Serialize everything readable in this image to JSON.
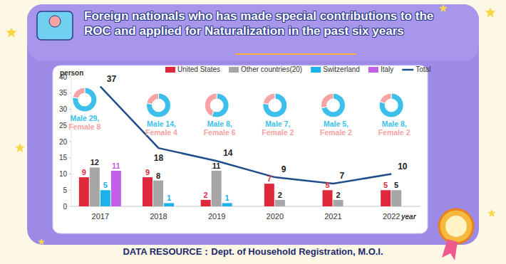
{
  "chart_data": [
    {
      "type": "bar",
      "title": "Foreign nationals who has made special contributions to the ROC and applied for Naturalization  in the past six years",
      "x_label": "year",
      "y_label": "person",
      "annotations": [
        "DATA RESOURCE：Dept. of Household Registration, M.O.I."
      ],
      "categories": [
        "2017",
        "2018",
        "2019",
        "2020",
        "2021",
        "2022"
      ],
      "series": [
        {
          "name": "United States",
          "type": "bar",
          "color": "#e0283c",
          "values": [
            9,
            9,
            2,
            7,
            5,
            5
          ]
        },
        {
          "name": "Other countries(20)",
          "type": "bar",
          "color": "#a6a6a6",
          "values": [
            12,
            8,
            11,
            2,
            2,
            5
          ]
        },
        {
          "name": "Switzerland",
          "type": "bar",
          "color": "#1ab2e8",
          "values": [
            5,
            1,
            1,
            null,
            null,
            null
          ]
        },
        {
          "name": "Italy",
          "type": "bar",
          "color": "#c060e8",
          "values": [
            11,
            null,
            null,
            null,
            null,
            null
          ]
        },
        {
          "name": "Total",
          "type": "line",
          "color": "#1f4e8c",
          "values": [
            37,
            18,
            14,
            9,
            7,
            10
          ]
        }
      ],
      "ylim": [
        0,
        40
      ],
      "yticks": [
        0,
        5,
        10,
        15,
        20,
        25,
        30,
        35,
        40
      ],
      "grid": false,
      "legend": "top",
      "data_labels": true
    },
    {
      "type": "pie",
      "categories": [
        "Male",
        "Female"
      ],
      "values": [
        29,
        8
      ],
      "colors": [
        "#3cbfea",
        "#f5a3a3"
      ],
      "value_labels": [
        "Male 29,",
        "Female 8"
      ],
      "data_labels": true
    },
    {
      "type": "pie",
      "categories": [
        "Male",
        "Female"
      ],
      "values": [
        14,
        4
      ],
      "colors": [
        "#3cbfea",
        "#f5a3a3"
      ],
      "value_labels": [
        "Male 14,",
        "Female 4"
      ],
      "data_labels": true
    },
    {
      "type": "pie",
      "categories": [
        "Male",
        "Female"
      ],
      "values": [
        8,
        6
      ],
      "colors": [
        "#3cbfea",
        "#f5a3a3"
      ],
      "value_labels": [
        "Male 8,",
        "Female 6"
      ],
      "data_labels": true
    },
    {
      "type": "pie",
      "categories": [
        "Male",
        "Female"
      ],
      "values": [
        7,
        2
      ],
      "colors": [
        "#3cbfea",
        "#f5a3a3"
      ],
      "value_labels": [
        "Male 7,",
        "Female 2"
      ],
      "data_labels": true
    },
    {
      "type": "pie",
      "categories": [
        "Male",
        "Female"
      ],
      "values": [
        5,
        2
      ],
      "colors": [
        "#3cbfea",
        "#f5a3a3"
      ],
      "value_labels": [
        "Male 5,",
        "Female 2"
      ],
      "data_labels": true
    },
    {
      "type": "pie",
      "categories": [
        "Male",
        "Female"
      ],
      "values": [
        8,
        2
      ],
      "colors": [
        "#3cbfea",
        "#f5a3a3"
      ],
      "value_labels": [
        "Male 8,",
        "Female 2"
      ],
      "data_labels": true
    }
  ]
}
